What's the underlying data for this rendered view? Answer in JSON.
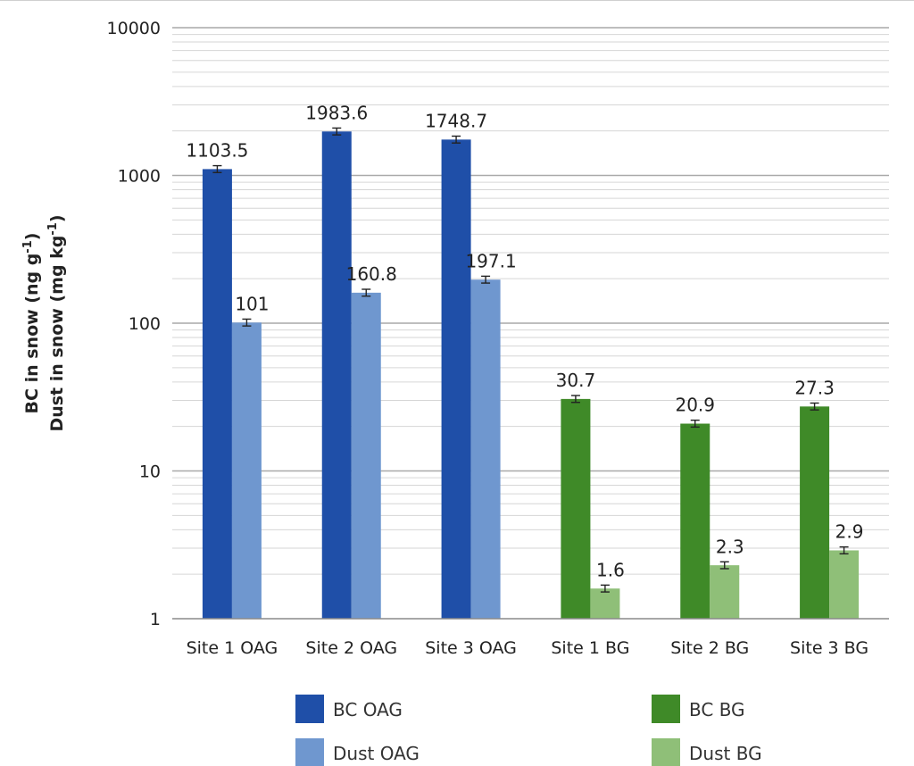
{
  "chart_data": {
    "type": "bar",
    "title": "",
    "xlabel": "",
    "ylabel_lines": [
      {
        "prefix": "BC in snow (ng g",
        "sup": "-1",
        "suffix": ")"
      },
      {
        "prefix": "Dust in snow (mg kg",
        "sup": "-1",
        "suffix": ")"
      }
    ],
    "yscale": "log",
    "ylim": [
      1,
      10000
    ],
    "yticks": [
      "1",
      "10",
      "100",
      "1000",
      "10000"
    ],
    "grid": true,
    "legend_position": "bottom",
    "categories": [
      "Site 1 OAG",
      "Site 2 OAG",
      "Site 3 OAG",
      "Site 1 BG",
      "Site 2 BG",
      "Site 3 BG"
    ],
    "series": [
      {
        "name": "BC OAG",
        "color": "#1f4fa8",
        "values": [
          1103.5,
          1983.6,
          1748.7,
          null,
          null,
          null
        ],
        "labels": [
          "1103.5",
          "1983.6",
          "1748.7",
          "",
          "",
          ""
        ]
      },
      {
        "name": "Dust OAG",
        "color": "#6f97cf",
        "values": [
          101,
          160.8,
          197.1,
          null,
          null,
          null
        ],
        "labels": [
          "101",
          "160.8",
          "197.1",
          "",
          "",
          ""
        ]
      },
      {
        "name": "BC BG",
        "color": "#3f8a28",
        "values": [
          null,
          null,
          null,
          30.7,
          20.9,
          27.3
        ],
        "labels": [
          "",
          "",
          "",
          "30.7",
          "20.9",
          "27.3"
        ]
      },
      {
        "name": "Dust BG",
        "color": "#8fbf78",
        "values": [
          null,
          null,
          null,
          1.6,
          2.3,
          2.9
        ],
        "labels": [
          "",
          "",
          "",
          "1.6",
          "2.3",
          "2.9"
        ]
      }
    ],
    "legend": [
      {
        "name": "BC OAG",
        "color": "#1f4fa8"
      },
      {
        "name": "BC BG",
        "color": "#3f8a28"
      },
      {
        "name": "Dust OAG",
        "color": "#6f97cf"
      },
      {
        "name": "Dust BG",
        "color": "#8fbf78"
      }
    ]
  }
}
